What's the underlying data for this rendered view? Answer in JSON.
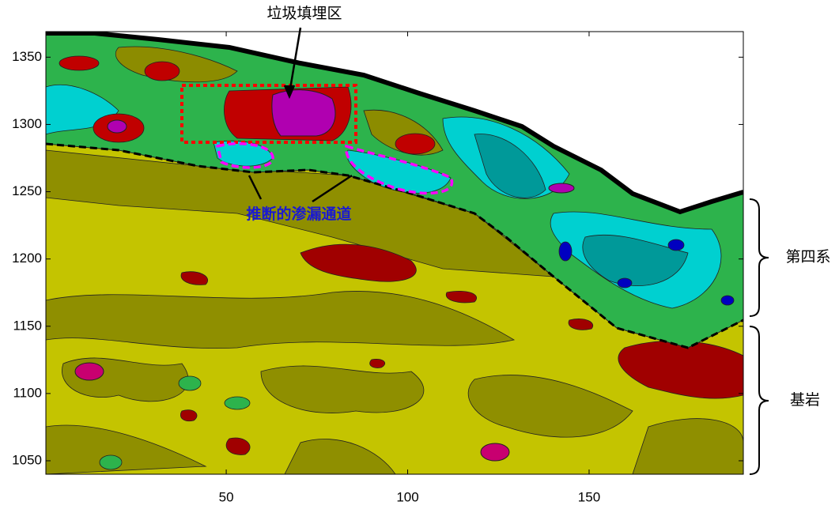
{
  "chart_data": {
    "type": "contour",
    "annotations": [
      "垃圾填埋区",
      "推断的渗漏通道",
      "第四系",
      "基岩"
    ],
    "xlim": [
      0.3,
      192.5
    ],
    "ylim": [
      1040,
      1369
    ],
    "xticks": [
      50,
      100,
      150
    ],
    "yticks": [
      1050,
      1100,
      1150,
      1200,
      1250,
      1300,
      1350
    ]
  }
}
